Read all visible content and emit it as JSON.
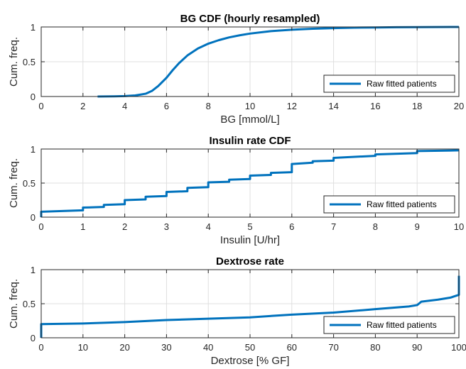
{
  "chart_data": [
    {
      "type": "line",
      "title": "BG CDF (hourly resampled)",
      "xlabel": "BG [mmol/L]",
      "ylabel": "Cum. freq.",
      "xlim": [
        0,
        20
      ],
      "ylim": [
        0,
        1
      ],
      "xticks": [
        0,
        2,
        4,
        6,
        8,
        10,
        12,
        14,
        16,
        18,
        20
      ],
      "yticks": [
        0,
        0.5,
        1
      ],
      "xticklabels": [
        "0",
        "2",
        "4",
        "6",
        "8",
        "10",
        "12",
        "14",
        "16",
        "18",
        "20"
      ],
      "yticklabels": [
        "0",
        "0.5",
        "1"
      ],
      "grid": true,
      "legend_position": "bottom-right",
      "series": [
        {
          "name": "Raw fitted patients",
          "color": "#0072BD",
          "points": [
            [
              2.7,
              0.0
            ],
            [
              3.5,
              0.002
            ],
            [
              4.0,
              0.006
            ],
            [
              4.5,
              0.015
            ],
            [
              5.0,
              0.04
            ],
            [
              5.3,
              0.08
            ],
            [
              5.6,
              0.15
            ],
            [
              6.0,
              0.27
            ],
            [
              6.3,
              0.38
            ],
            [
              6.6,
              0.48
            ],
            [
              7.0,
              0.59
            ],
            [
              7.5,
              0.69
            ],
            [
              8.0,
              0.76
            ],
            [
              8.5,
              0.81
            ],
            [
              9.0,
              0.85
            ],
            [
              9.5,
              0.88
            ],
            [
              10.0,
              0.905
            ],
            [
              11.0,
              0.94
            ],
            [
              12.0,
              0.96
            ],
            [
              13.0,
              0.975
            ],
            [
              14.0,
              0.984
            ],
            [
              15.0,
              0.99
            ],
            [
              16.0,
              0.993
            ],
            [
              17.0,
              0.996
            ],
            [
              18.0,
              0.998
            ],
            [
              20.0,
              1.0
            ]
          ]
        }
      ]
    },
    {
      "type": "line",
      "title": "Insulin rate CDF",
      "xlabel": "Insulin [U/hr]",
      "ylabel": "Cum. freq.",
      "xlim": [
        0,
        10
      ],
      "ylim": [
        0,
        1
      ],
      "xticks": [
        0,
        1,
        2,
        3,
        4,
        5,
        6,
        7,
        8,
        9,
        10
      ],
      "yticks": [
        0,
        0.5,
        1
      ],
      "xticklabels": [
        "0",
        "1",
        "2",
        "3",
        "4",
        "5",
        "6",
        "7",
        "8",
        "9",
        "10"
      ],
      "yticklabels": [
        "0",
        "0.5",
        "1"
      ],
      "grid": true,
      "legend_position": "bottom-right",
      "series": [
        {
          "name": "Raw fitted patients",
          "color": "#0072BD",
          "points": [
            [
              0,
              0.0
            ],
            [
              0,
              0.08
            ],
            [
              1.0,
              0.1
            ],
            [
              1.0,
              0.14
            ],
            [
              1.5,
              0.15
            ],
            [
              1.5,
              0.18
            ],
            [
              2.0,
              0.19
            ],
            [
              2.0,
              0.25
            ],
            [
              2.5,
              0.26
            ],
            [
              2.5,
              0.3
            ],
            [
              3.0,
              0.31
            ],
            [
              3.0,
              0.37
            ],
            [
              3.5,
              0.38
            ],
            [
              3.5,
              0.43
            ],
            [
              4.0,
              0.44
            ],
            [
              4.0,
              0.51
            ],
            [
              4.5,
              0.52
            ],
            [
              4.5,
              0.55
            ],
            [
              5.0,
              0.56
            ],
            [
              5.0,
              0.61
            ],
            [
              5.5,
              0.62
            ],
            [
              5.5,
              0.65
            ],
            [
              6.0,
              0.66
            ],
            [
              6.0,
              0.78
            ],
            [
              6.5,
              0.8
            ],
            [
              6.5,
              0.82
            ],
            [
              7.0,
              0.83
            ],
            [
              7.0,
              0.87
            ],
            [
              8.0,
              0.9
            ],
            [
              8.0,
              0.92
            ],
            [
              9.0,
              0.94
            ],
            [
              9.0,
              0.97
            ],
            [
              10.0,
              0.98
            ]
          ]
        }
      ]
    },
    {
      "type": "line",
      "title": "Dextrose rate",
      "xlabel": "Dextrose [% GF]",
      "ylabel": "Cum. freq.",
      "xlim": [
        0,
        100
      ],
      "ylim": [
        0,
        1
      ],
      "xticks": [
        0,
        10,
        20,
        30,
        40,
        50,
        60,
        70,
        80,
        90,
        100
      ],
      "yticks": [
        0,
        0.5,
        1
      ],
      "xticklabels": [
        "0",
        "10",
        "20",
        "30",
        "40",
        "50",
        "60",
        "70",
        "80",
        "90",
        "100"
      ],
      "yticklabels": [
        "0",
        "0.5",
        "1"
      ],
      "grid": true,
      "legend_position": "bottom-right",
      "series": [
        {
          "name": "Raw fitted patients",
          "color": "#0072BD",
          "points": [
            [
              0,
              0.0
            ],
            [
              0,
              0.2
            ],
            [
              10,
              0.21
            ],
            [
              20,
              0.23
            ],
            [
              30,
              0.26
            ],
            [
              40,
              0.28
            ],
            [
              50,
              0.3
            ],
            [
              60,
              0.34
            ],
            [
              70,
              0.37
            ],
            [
              80,
              0.42
            ],
            [
              88,
              0.46
            ],
            [
              90,
              0.48
            ],
            [
              91,
              0.53
            ],
            [
              95,
              0.56
            ],
            [
              98,
              0.59
            ],
            [
              99.5,
              0.62
            ],
            [
              100,
              0.63
            ],
            [
              100,
              0.91
            ]
          ]
        }
      ]
    }
  ]
}
